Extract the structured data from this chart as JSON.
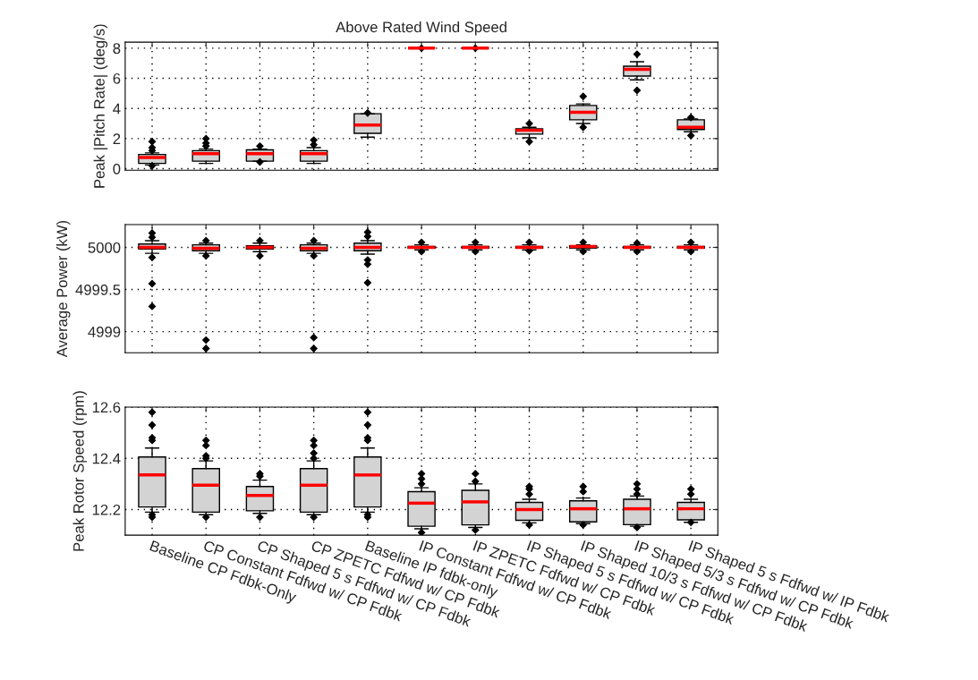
{
  "chart_data": [
    {
      "type": "box",
      "title": "Above Rated Wind Speed",
      "ylabel": "Peak |Pitch Rate| (deg/s)",
      "boxes": [
        {
          "low": 0.25,
          "q1": 0.35,
          "median": 0.75,
          "q3": 0.95,
          "high": 1.05,
          "outliers": [
            1.2,
            1.4,
            1.8,
            0.2
          ]
        },
        {
          "low": 0.35,
          "q1": 0.5,
          "median": 1.0,
          "q3": 1.2,
          "high": 1.3,
          "outliers": [
            1.5,
            1.7,
            2.0
          ]
        },
        {
          "low": 0.5,
          "q1": 0.5,
          "median": 1.0,
          "q3": 1.25,
          "high": 1.3,
          "outliers": [
            1.5,
            0.45
          ]
        },
        {
          "low": 0.35,
          "q1": 0.5,
          "median": 1.0,
          "q3": 1.2,
          "high": 1.4,
          "outliers": [
            1.6,
            1.9
          ]
        },
        {
          "low": 2.1,
          "q1": 2.35,
          "median": 2.9,
          "q3": 3.65,
          "high": 3.65,
          "outliers": [
            3.7
          ]
        },
        {
          "low": 8,
          "q1": 8,
          "median": 8,
          "q3": 8,
          "high": 8,
          "outliers": [
            8
          ]
        },
        {
          "low": 8,
          "q1": 8,
          "median": 8,
          "q3": 8,
          "high": 8,
          "outliers": [
            8
          ]
        },
        {
          "low": 2.05,
          "q1": 2.3,
          "median": 2.55,
          "q3": 2.65,
          "high": 2.75,
          "outliers": [
            3.0,
            1.8
          ]
        },
        {
          "low": 3.0,
          "q1": 3.25,
          "median": 3.75,
          "q3": 4.2,
          "high": 4.3,
          "outliers": [
            4.8,
            2.75
          ]
        },
        {
          "low": 5.9,
          "q1": 6.15,
          "median": 6.6,
          "q3": 6.8,
          "high": 7.1,
          "outliers": [
            7.6,
            5.2
          ]
        },
        {
          "low": 2.45,
          "q1": 2.6,
          "median": 2.75,
          "q3": 3.25,
          "high": 3.3,
          "outliers": [
            3.4,
            2.2
          ]
        }
      ],
      "ylim": [
        -0.1,
        8.4
      ],
      "yticks": [
        0,
        2,
        4,
        6,
        8
      ],
      "grid": true,
      "tick_labels": "y"
    },
    {
      "type": "box",
      "ylabel": "Average Power (kW)",
      "boxes": [
        {
          "low": 4999.93,
          "q1": 4999.98,
          "median": 5000.0,
          "q3": 5000.04,
          "high": 5000.08,
          "outliers": [
            5000.12,
            5000.17,
            4999.88,
            4999.57,
            4999.3
          ]
        },
        {
          "low": 4999.93,
          "q1": 4999.96,
          "median": 4999.99,
          "q3": 5000.03,
          "high": 5000.05,
          "outliers": [
            5000.08,
            4999.9,
            4998.9,
            4998.8
          ]
        },
        {
          "low": 4999.95,
          "q1": 4999.98,
          "median": 5000.0,
          "q3": 5000.02,
          "high": 5000.05,
          "outliers": [
            5000.08,
            4999.9
          ]
        },
        {
          "low": 4999.93,
          "q1": 4999.96,
          "median": 4999.99,
          "q3": 5000.03,
          "high": 5000.05,
          "outliers": [
            5000.08,
            4999.9,
            4998.93,
            4998.8
          ]
        },
        {
          "low": 4999.92,
          "q1": 4999.96,
          "median": 5000.0,
          "q3": 5000.05,
          "high": 5000.08,
          "outliers": [
            5000.13,
            5000.18,
            4999.85,
            4999.8,
            4999.58
          ]
        },
        {
          "low": 4999.97,
          "q1": 4999.99,
          "median": 5000.0,
          "q3": 5000.01,
          "high": 5000.03,
          "outliers": [
            5000.06,
            4999.95
          ]
        },
        {
          "low": 4999.97,
          "q1": 4999.99,
          "median": 5000.0,
          "q3": 5000.01,
          "high": 5000.03,
          "outliers": [
            5000.06,
            4999.95
          ]
        },
        {
          "low": 4999.97,
          "q1": 4999.99,
          "median": 5000.0,
          "q3": 5000.01,
          "high": 5000.03,
          "outliers": [
            5000.06,
            4999.96
          ]
        },
        {
          "low": 4999.97,
          "q1": 4999.99,
          "median": 5000.01,
          "q3": 5000.02,
          "high": 5000.03,
          "outliers": [
            5000.06,
            4999.95
          ]
        },
        {
          "low": 4999.97,
          "q1": 4999.99,
          "median": 5000.0,
          "q3": 5000.01,
          "high": 5000.03,
          "outliers": [
            5000.05,
            4999.95
          ]
        },
        {
          "low": 4999.97,
          "q1": 4999.99,
          "median": 5000.0,
          "q3": 5000.01,
          "high": 5000.03,
          "outliers": [
            5000.06,
            4999.95
          ]
        }
      ],
      "ylim": [
        4998.75,
        5000.27
      ],
      "yticks": [
        4999,
        4999.5,
        5000
      ],
      "grid": true,
      "tick_labels": "y"
    },
    {
      "type": "box",
      "ylabel": "Peak Rotor Speed (rpm)",
      "categories": [
        "Baseline CP Fdbk-Only",
        "CP Constant Fdfwd w/ CP Fdbk",
        "CP Shaped 5 s Fdfwd w/ CP Fdbk",
        "CP ZPETC Fdfwd w/ CP Fdbk",
        "Baseline IP fdbk-only",
        "IP Constant Fdfwd w/ CP Fdbk",
        "IP ZPETC Fdfwd w/ CP Fdbk",
        "IP Shaped 5 s Fdfwd w/ CP Fdbk",
        "IP Shaped 10/3 s Fdfwd w/ CP Fdbk",
        "IP Shaped 5/3 s Fdfwd w/ CP Fdbk",
        "IP Shaped 5 s Fdfwd w/ IP Fdbk"
      ],
      "boxes": [
        {
          "low": 12.19,
          "q1": 12.21,
          "median": 12.335,
          "q3": 12.405,
          "high": 12.44,
          "outliers": [
            12.47,
            12.48,
            12.53,
            12.58,
            12.18,
            12.17
          ]
        },
        {
          "low": 12.18,
          "q1": 12.19,
          "median": 12.295,
          "q3": 12.36,
          "high": 12.39,
          "outliers": [
            12.4,
            12.41,
            12.45,
            12.47,
            12.17
          ]
        },
        {
          "low": 12.185,
          "q1": 12.195,
          "median": 12.255,
          "q3": 12.29,
          "high": 12.315,
          "outliers": [
            12.33,
            12.34,
            12.17
          ]
        },
        {
          "low": 12.18,
          "q1": 12.19,
          "median": 12.295,
          "q3": 12.36,
          "high": 12.39,
          "outliers": [
            12.4,
            12.42,
            12.45,
            12.47,
            12.17
          ]
        },
        {
          "low": 12.19,
          "q1": 12.21,
          "median": 12.335,
          "q3": 12.405,
          "high": 12.44,
          "outliers": [
            12.47,
            12.48,
            12.53,
            12.58,
            12.18,
            12.17
          ]
        },
        {
          "low": 12.125,
          "q1": 12.135,
          "median": 12.225,
          "q3": 12.27,
          "high": 12.285,
          "outliers": [
            12.3,
            12.32,
            12.34,
            12.11
          ]
        },
        {
          "low": 12.13,
          "q1": 12.14,
          "median": 12.23,
          "q3": 12.275,
          "high": 12.3,
          "outliers": [
            12.31,
            12.34,
            12.12
          ]
        },
        {
          "low": 12.148,
          "q1": 12.158,
          "median": 12.2,
          "q3": 12.228,
          "high": 12.24,
          "outliers": [
            12.26,
            12.28,
            12.29,
            12.14
          ]
        },
        {
          "low": 12.145,
          "q1": 12.152,
          "median": 12.203,
          "q3": 12.234,
          "high": 12.245,
          "outliers": [
            12.27,
            12.29,
            12.14
          ]
        },
        {
          "low": 12.135,
          "q1": 12.141,
          "median": 12.203,
          "q3": 12.24,
          "high": 12.253,
          "outliers": [
            12.26,
            12.28,
            12.3,
            12.13
          ]
        },
        {
          "low": 12.15,
          "q1": 12.16,
          "median": 12.203,
          "q3": 12.228,
          "high": 12.24,
          "outliers": [
            12.26,
            12.28,
            12.15
          ]
        }
      ],
      "ylim": [
        12.1,
        12.6
      ],
      "yticks": [
        12.2,
        12.4,
        12.6
      ],
      "grid": true
    }
  ]
}
